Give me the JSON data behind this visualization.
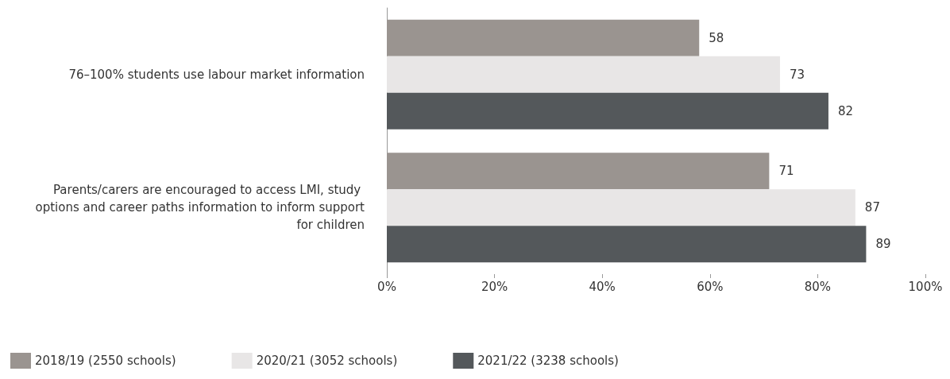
{
  "chart_data": {
    "type": "bar",
    "orientation": "horizontal",
    "categories": [
      "76–100% students use labour market information",
      "Parents/carers are encouraged to access LMI, study options and career paths information to inform support for children"
    ],
    "series": [
      {
        "name": "2018/19 (2550 schools)",
        "color": "#9a9490",
        "values": [
          58,
          71
        ]
      },
      {
        "name": "2020/21 (3052 schools)",
        "color": "#e8e6e6",
        "values": [
          73,
          87
        ]
      },
      {
        "name": "2021/22 (3238 schools)",
        "color": "#54585b",
        "values": [
          82,
          89
        ]
      }
    ],
    "xlim": [
      0,
      100
    ],
    "xticks": [
      {
        "value": 0,
        "label": "0%"
      },
      {
        "value": 20,
        "label": "20%"
      },
      {
        "value": 40,
        "label": "40%"
      },
      {
        "value": 60,
        "label": "60%"
      },
      {
        "value": 80,
        "label": "80%"
      },
      {
        "value": 100,
        "label": "100%"
      }
    ],
    "data_labels": true,
    "grid": false,
    "legend": "bottom left"
  }
}
